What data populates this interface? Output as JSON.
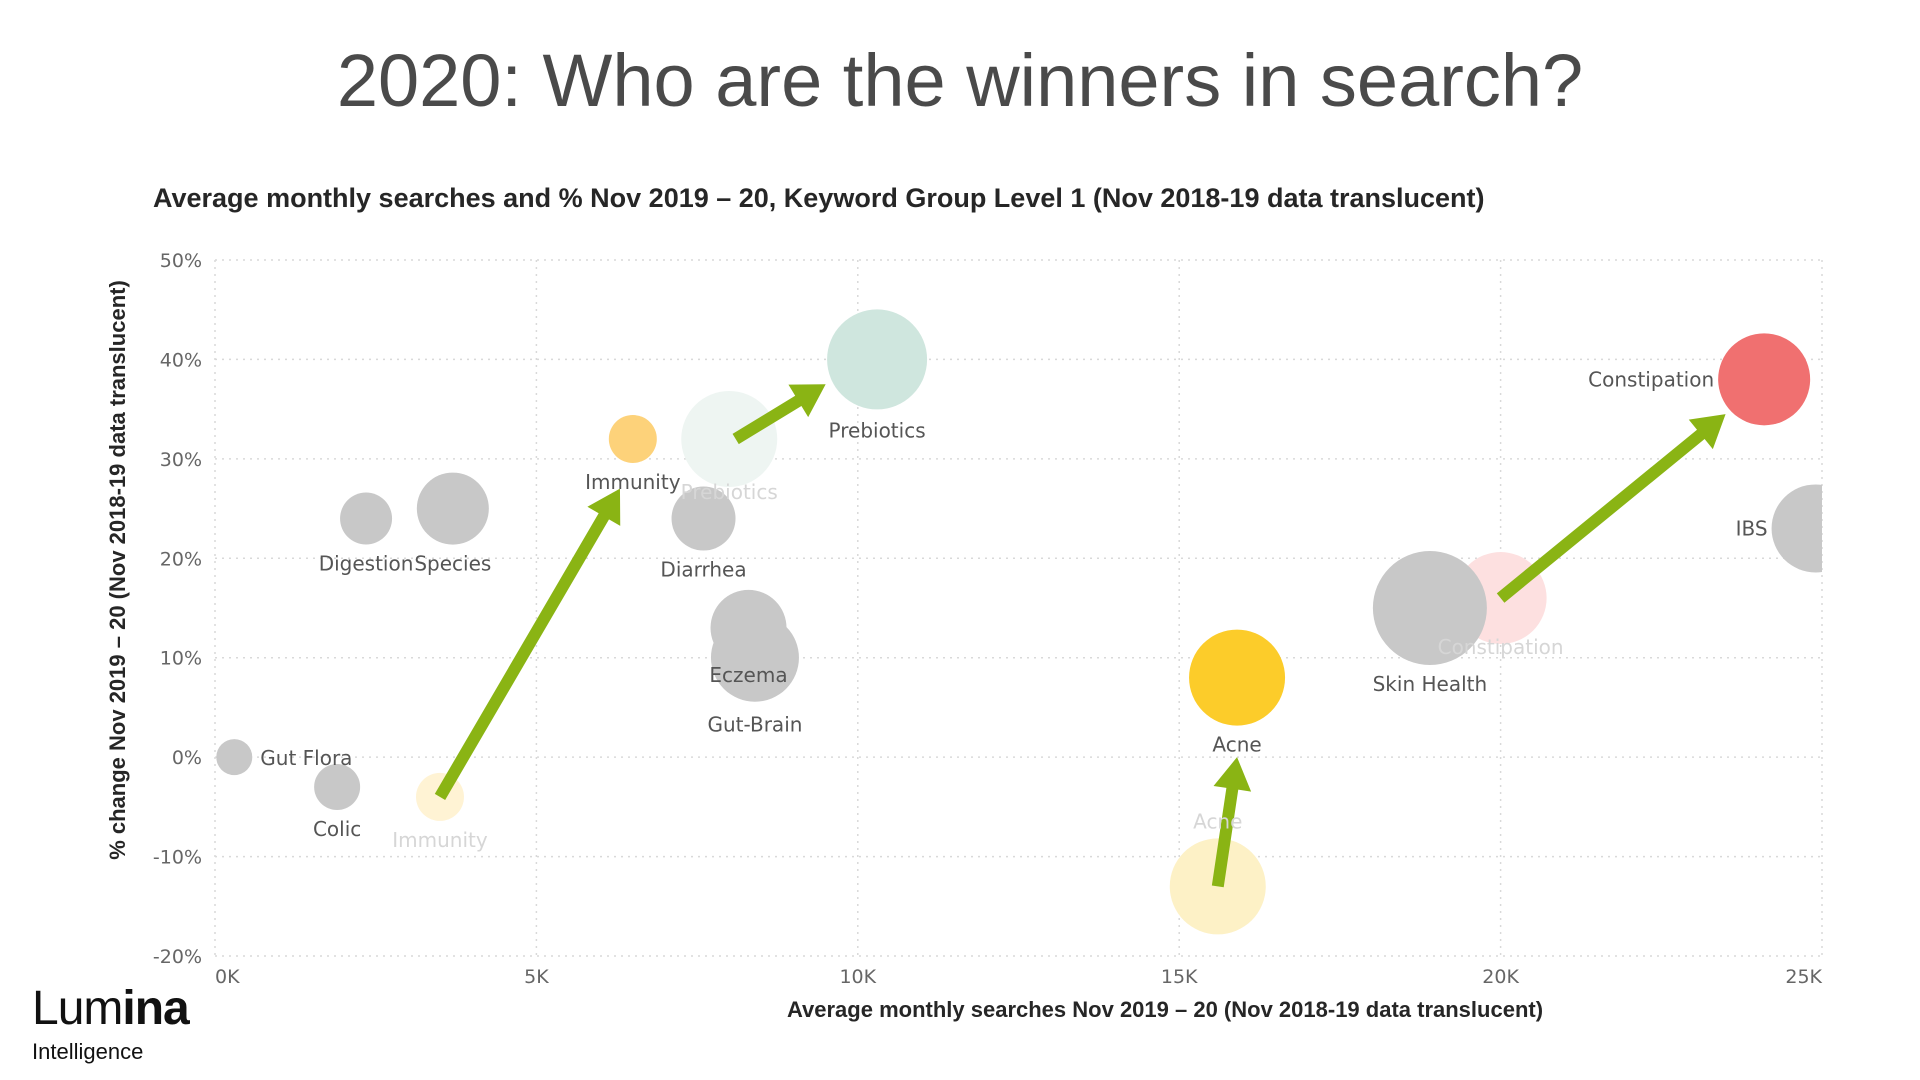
{
  "page": {
    "title": "2020: Who are the winners in search?"
  },
  "logo": {
    "name_part1": "Lum",
    "name_part2": "ina",
    "tagline": "Intelligence"
  },
  "chart_data": {
    "type": "scatter",
    "title": "Average monthly searches and % Nov 2019 – 20, Keyword Group Level 1 (Nov 2018-19 data translucent)",
    "xlabel": "Average monthly searches Nov 2019 – 20  (Nov 2018-19 data translucent)",
    "ylabel": "% change Nov 2019 – 20  (Nov 2018-19 data translucent)",
    "xlim": [
      0,
      25000
    ],
    "ylim": [
      -20,
      50
    ],
    "x_ticks": [
      0,
      5000,
      10000,
      15000,
      20000,
      25000
    ],
    "x_tick_labels": [
      "0K",
      "5K",
      "10K",
      "15K",
      "20K",
      "25K"
    ],
    "y_ticks": [
      -20,
      -10,
      0,
      10,
      20,
      30,
      40,
      50
    ],
    "y_tick_labels": [
      "-20%",
      "-10%",
      "0%",
      "10%",
      "20%",
      "30%",
      "40%",
      "50%"
    ],
    "grid": true,
    "colors": {
      "grey": "#c8c8c8",
      "immunity": "#fdd27a",
      "prebiotics": "#cfe6de",
      "constipation": "#f07070",
      "acne": "#fccc2a",
      "arrow": "#8ab414"
    },
    "bubbles_prior": [
      {
        "label": "Immunity",
        "x": 3500,
        "y": -4,
        "size": 24,
        "color": "#fff3d4"
      },
      {
        "label": "Prebiotics",
        "x": 8000,
        "y": 32,
        "size": 48,
        "color": "#eef5f2"
      },
      {
        "label": "Constipation",
        "x": 20000,
        "y": 16,
        "size": 46,
        "color": "#fde0e0"
      },
      {
        "label": "Acne",
        "x": 15600,
        "y": -13,
        "size": 48,
        "color": "#fdf1c6"
      }
    ],
    "bubbles": [
      {
        "label": "Gut Flora",
        "x": 300,
        "y": 0,
        "size": 18,
        "color": "#c8c8c8"
      },
      {
        "label": "Colic",
        "x": 1900,
        "y": -3,
        "size": 23,
        "color": "#c8c8c8"
      },
      {
        "label": "Digestion",
        "x": 2350,
        "y": 24,
        "size": 26,
        "color": "#c8c8c8"
      },
      {
        "label": "Species",
        "x": 3700,
        "y": 25,
        "size": 36,
        "color": "#c8c8c8"
      },
      {
        "label": "Diarrhea",
        "x": 7600,
        "y": 24,
        "size": 32,
        "color": "#c8c8c8"
      },
      {
        "label": "Eczema",
        "x": 8300,
        "y": 13,
        "size": 38,
        "color": "#c8c8c8"
      },
      {
        "label": "Gut-Brain",
        "x": 8400,
        "y": 10,
        "size": 44,
        "color": "#c8c8c8"
      },
      {
        "label": "Skin Health",
        "x": 18900,
        "y": 15,
        "size": 57,
        "color": "#c8c8c8"
      },
      {
        "label": "IBS",
        "x": 24900,
        "y": 23,
        "size": 44,
        "color": "#c8c8c8"
      },
      {
        "label": "Immunity",
        "x": 6500,
        "y": 32,
        "size": 24,
        "color": "#fdd27a"
      },
      {
        "label": "Prebiotics",
        "x": 10300,
        "y": 40,
        "size": 50,
        "color": "#cfe6de"
      },
      {
        "label": "Constipation",
        "x": 24100,
        "y": 38,
        "size": 46,
        "color": "#f07070"
      },
      {
        "label": "Acne",
        "x": 15900,
        "y": 8,
        "size": 48,
        "color": "#fccc2a"
      }
    ],
    "arrows": [
      {
        "from": [
          3500,
          -4
        ],
        "to": [
          6300,
          27
        ]
      },
      {
        "from": [
          8100,
          32
        ],
        "to": [
          9500,
          37.5
        ]
      },
      {
        "from": [
          20000,
          16
        ],
        "to": [
          23500,
          34.5
        ]
      },
      {
        "from": [
          15600,
          -13
        ],
        "to": [
          15900,
          0
        ]
      }
    ]
  }
}
